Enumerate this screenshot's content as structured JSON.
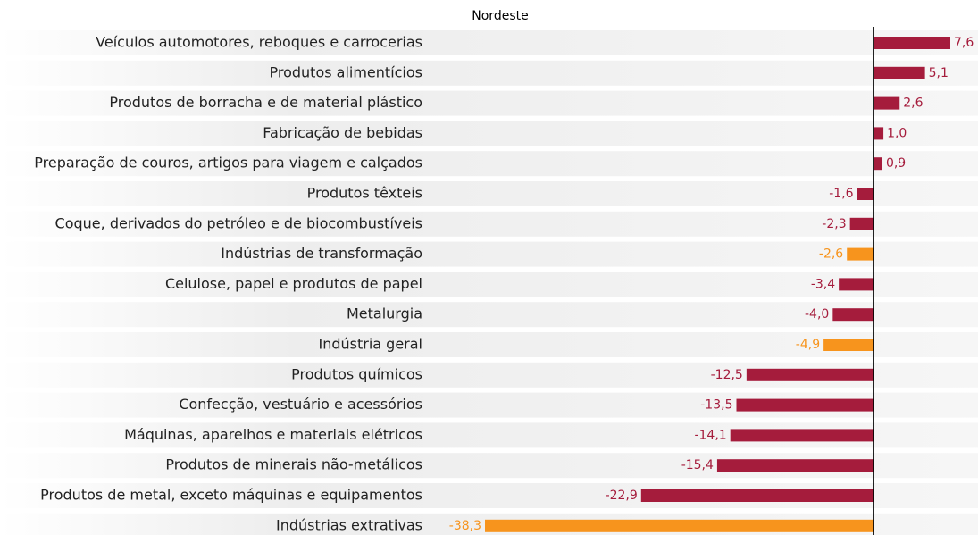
{
  "chart_data": {
    "type": "bar",
    "orientation": "horizontal",
    "title": "Nordeste",
    "categories": [
      "Veículos automotores, reboques e carrocerias",
      "Produtos alimentícios",
      "Produtos de borracha e de material plástico",
      "Fabricação de bebidas",
      "Preparação de couros, artigos para viagem e calçados",
      "Produtos têxteis",
      "Coque, derivados do petróleo e de biocombustíveis",
      "Indústrias de transformação",
      "Celulose, papel e produtos de papel",
      "Metalurgia",
      "Indústria geral",
      "Produtos químicos",
      "Confecção, vestuário e acessórios",
      "Máquinas, aparelhos e materiais elétricos",
      "Produtos de minerais não-metálicos",
      "Produtos de metal, exceto máquinas e equipamentos",
      "Indústrias extrativas"
    ],
    "values": [
      7.6,
      5.1,
      2.6,
      1.0,
      0.9,
      -1.6,
      -2.3,
      -2.6,
      -3.4,
      -4.0,
      -4.9,
      -12.5,
      -13.5,
      -14.1,
      -15.4,
      -22.9,
      -38.3
    ],
    "value_labels": [
      "7,6",
      "5,1",
      "2,6",
      "1,0",
      "0,9",
      "-1,6",
      "-2,3",
      "-2,6",
      "-3,4",
      "-4,0",
      "-4,9",
      "-12,5",
      "-13,5",
      "-14,1",
      "-15,4",
      "-22,9",
      "-38,3"
    ],
    "colors": [
      "#a51c3c",
      "#a51c3c",
      "#a51c3c",
      "#a51c3c",
      "#a51c3c",
      "#a51c3c",
      "#a51c3c",
      "#f7941d",
      "#a51c3c",
      "#a51c3c",
      "#f7941d",
      "#a51c3c",
      "#a51c3c",
      "#a51c3c",
      "#a51c3c",
      "#a51c3c",
      "#f7941d"
    ]
  }
}
